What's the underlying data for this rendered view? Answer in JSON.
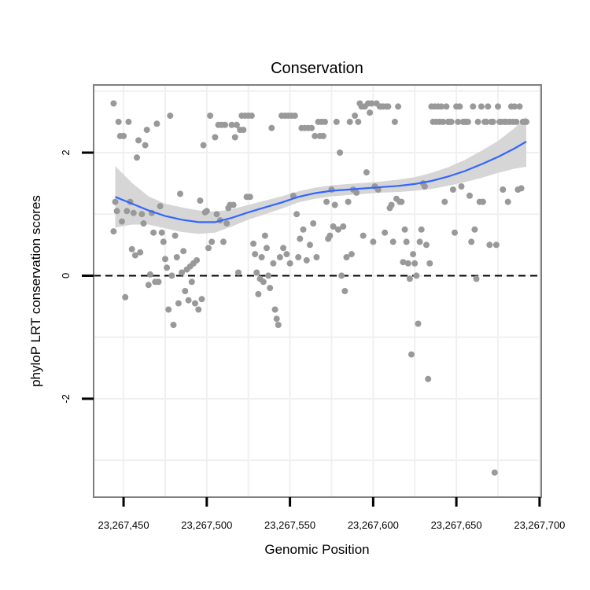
{
  "chart_data": {
    "type": "scatter",
    "title": "Conservation",
    "xlabel": "Genomic Position",
    "ylabel": "phyloP LRT conservation scores",
    "xlim": [
      23267432,
      23267701
    ],
    "ylim": [
      -3.6,
      3.1
    ],
    "x_ticks": [
      23267450,
      23267500,
      23267550,
      23267600,
      23267650,
      23267700
    ],
    "x_tick_labels": [
      "23,267,450",
      "23,267,500",
      "23,267,550",
      "23,267,600",
      "23,267,650",
      "23,267,700"
    ],
    "y_ticks": [
      -2,
      0,
      2
    ],
    "y_tick_labels": [
      "-2",
      "0",
      "2"
    ],
    "grid": true,
    "reference_line": {
      "y": 0,
      "style": "dashed"
    },
    "colors": {
      "points": "#999999",
      "smooth_line": "#3366ff",
      "ribbon": "#d6d6d6",
      "grid": "#f0f0f0",
      "panel_border": "#7f7f7f"
    },
    "points": [
      {
        "x": 23267444,
        "y": 2.8
      },
      {
        "x": 23267444,
        "y": 0.72
      },
      {
        "x": 23267445,
        "y": 1.2
      },
      {
        "x": 23267446,
        "y": 1.05
      },
      {
        "x": 23267447,
        "y": 2.5
      },
      {
        "x": 23267448,
        "y": 2.27
      },
      {
        "x": 23267449,
        "y": 0.88
      },
      {
        "x": 23267450,
        "y": 2.27
      },
      {
        "x": 23267451,
        "y": -0.35
      },
      {
        "x": 23267452,
        "y": 1.05
      },
      {
        "x": 23267453,
        "y": 2.5
      },
      {
        "x": 23267454,
        "y": 1.2
      },
      {
        "x": 23267455,
        "y": 0.43
      },
      {
        "x": 23267456,
        "y": 1.02
      },
      {
        "x": 23267457,
        "y": 0.33
      },
      {
        "x": 23267458,
        "y": 1.92
      },
      {
        "x": 23267459,
        "y": 2.2
      },
      {
        "x": 23267460,
        "y": 0.38
      },
      {
        "x": 23267461,
        "y": 1.0
      },
      {
        "x": 23267462,
        "y": 0.85
      },
      {
        "x": 23267463,
        "y": 2.12
      },
      {
        "x": 23267464,
        "y": 2.37
      },
      {
        "x": 23267465,
        "y": -0.15
      },
      {
        "x": 23267466,
        "y": 0.02
      },
      {
        "x": 23267467,
        "y": 1.02
      },
      {
        "x": 23267468,
        "y": 0.7
      },
      {
        "x": 23267469,
        "y": -0.1
      },
      {
        "x": 23267470,
        "y": 2.47
      },
      {
        "x": 23267471,
        "y": -0.1
      },
      {
        "x": 23267472,
        "y": 1.13
      },
      {
        "x": 23267473,
        "y": 0.7
      },
      {
        "x": 23267474,
        "y": 0.55
      },
      {
        "x": 23267475,
        "y": 0.27
      },
      {
        "x": 23267476,
        "y": 0.13
      },
      {
        "x": 23267477,
        "y": -0.55
      },
      {
        "x": 23267478,
        "y": 2.6
      },
      {
        "x": 23267479,
        "y": 0.0
      },
      {
        "x": 23267480,
        "y": -0.8
      },
      {
        "x": 23267481,
        "y": 0.65
      },
      {
        "x": 23267482,
        "y": 0.3
      },
      {
        "x": 23267483,
        "y": -0.45
      },
      {
        "x": 23267484,
        "y": 1.33
      },
      {
        "x": 23267485,
        "y": 0.05
      },
      {
        "x": 23267486,
        "y": 0.4
      },
      {
        "x": 23267487,
        "y": -0.25
      },
      {
        "x": 23267488,
        "y": 0.1
      },
      {
        "x": 23267489,
        "y": -0.4
      },
      {
        "x": 23267490,
        "y": 0.15
      },
      {
        "x": 23267491,
        "y": -0.1
      },
      {
        "x": 23267492,
        "y": 0.2
      },
      {
        "x": 23267493,
        "y": -0.45
      },
      {
        "x": 23267494,
        "y": 0.25
      },
      {
        "x": 23267495,
        "y": -0.55
      },
      {
        "x": 23267496,
        "y": 1.22
      },
      {
        "x": 23267497,
        "y": -0.38
      },
      {
        "x": 23267498,
        "y": 2.12
      },
      {
        "x": 23267499,
        "y": 1.03
      },
      {
        "x": 23267500,
        "y": 1.05
      },
      {
        "x": 23267501,
        "y": 0.45
      },
      {
        "x": 23267502,
        "y": 2.6
      },
      {
        "x": 23267503,
        "y": 0.55
      },
      {
        "x": 23267505,
        "y": 2.25
      },
      {
        "x": 23267506,
        "y": 1.0
      },
      {
        "x": 23267507,
        "y": 2.45
      },
      {
        "x": 23267508,
        "y": 0.9
      },
      {
        "x": 23267509,
        "y": 2.45
      },
      {
        "x": 23267510,
        "y": 0.55
      },
      {
        "x": 23267511,
        "y": 2.45
      },
      {
        "x": 23267512,
        "y": 0.85
      },
      {
        "x": 23267513,
        "y": 1.1
      },
      {
        "x": 23267514,
        "y": 1.15
      },
      {
        "x": 23267515,
        "y": 2.45
      },
      {
        "x": 23267516,
        "y": 1.15
      },
      {
        "x": 23267517,
        "y": 2.25
      },
      {
        "x": 23267518,
        "y": 2.45
      },
      {
        "x": 23267519,
        "y": 0.05
      },
      {
        "x": 23267520,
        "y": 2.37
      },
      {
        "x": 23267521,
        "y": 2.6
      },
      {
        "x": 23267522,
        "y": 2.37
      },
      {
        "x": 23267523,
        "y": 2.6
      },
      {
        "x": 23267524,
        "y": 1.28
      },
      {
        "x": 23267525,
        "y": 2.6
      },
      {
        "x": 23267526,
        "y": 1.28
      },
      {
        "x": 23267527,
        "y": 2.6
      },
      {
        "x": 23267528,
        "y": 0.52
      },
      {
        "x": 23267529,
        "y": 0.35
      },
      {
        "x": 23267530,
        "y": 0.05
      },
      {
        "x": 23267531,
        "y": -0.3
      },
      {
        "x": 23267532,
        "y": -0.05
      },
      {
        "x": 23267533,
        "y": 0.3
      },
      {
        "x": 23267534,
        "y": -0.1
      },
      {
        "x": 23267535,
        "y": 0.65
      },
      {
        "x": 23267536,
        "y": 0.45
      },
      {
        "x": 23267537,
        "y": 0.0
      },
      {
        "x": 23267538,
        "y": -0.2
      },
      {
        "x": 23267539,
        "y": 2.4
      },
      {
        "x": 23267540,
        "y": 0.2
      },
      {
        "x": 23267541,
        "y": -0.55
      },
      {
        "x": 23267542,
        "y": -0.7
      },
      {
        "x": 23267543,
        "y": -0.8
      },
      {
        "x": 23267544,
        "y": 0.3
      },
      {
        "x": 23267545,
        "y": 2.6
      },
      {
        "x": 23267546,
        "y": 0.45
      },
      {
        "x": 23267547,
        "y": 2.6
      },
      {
        "x": 23267548,
        "y": 0.35
      },
      {
        "x": 23267549,
        "y": 2.6
      },
      {
        "x": 23267550,
        "y": 0.2
      },
      {
        "x": 23267551,
        "y": 2.6
      },
      {
        "x": 23267552,
        "y": 1.3
      },
      {
        "x": 23267553,
        "y": 2.6
      },
      {
        "x": 23267554,
        "y": 1.0
      },
      {
        "x": 23267555,
        "y": 0.3
      },
      {
        "x": 23267556,
        "y": 0.6
      },
      {
        "x": 23267557,
        "y": 2.4
      },
      {
        "x": 23267558,
        "y": 0.75
      },
      {
        "x": 23267559,
        "y": 2.4
      },
      {
        "x": 23267560,
        "y": 0.25
      },
      {
        "x": 23267561,
        "y": 2.4
      },
      {
        "x": 23267562,
        "y": 0.5
      },
      {
        "x": 23267563,
        "y": 2.4
      },
      {
        "x": 23267564,
        "y": 0.85
      },
      {
        "x": 23267565,
        "y": 2.27
      },
      {
        "x": 23267566,
        "y": 0.3
      },
      {
        "x": 23267567,
        "y": 2.5
      },
      {
        "x": 23267568,
        "y": 2.27
      },
      {
        "x": 23267569,
        "y": 2.5
      },
      {
        "x": 23267570,
        "y": 2.27
      },
      {
        "x": 23267571,
        "y": 2.5
      },
      {
        "x": 23267572,
        "y": 1.2
      },
      {
        "x": 23267573,
        "y": 0.6
      },
      {
        "x": 23267574,
        "y": 0.65
      },
      {
        "x": 23267575,
        "y": 1.4
      },
      {
        "x": 23267576,
        "y": 0.8
      },
      {
        "x": 23267577,
        "y": 1.15
      },
      {
        "x": 23267578,
        "y": 2.5
      },
      {
        "x": 23267579,
        "y": 0.75
      },
      {
        "x": 23267580,
        "y": 2.0
      },
      {
        "x": 23267581,
        "y": 0.0
      },
      {
        "x": 23267582,
        "y": 0.8
      },
      {
        "x": 23267583,
        "y": -0.25
      },
      {
        "x": 23267584,
        "y": 0.3
      },
      {
        "x": 23267585,
        "y": 1.2
      },
      {
        "x": 23267586,
        "y": 2.5
      },
      {
        "x": 23267587,
        "y": 0.35
      },
      {
        "x": 23267588,
        "y": 1.4
      },
      {
        "x": 23267589,
        "y": 2.6
      },
      {
        "x": 23267590,
        "y": 1.35
      },
      {
        "x": 23267591,
        "y": 2.5
      },
      {
        "x": 23267592,
        "y": 2.8
      },
      {
        "x": 23267593,
        "y": 2.75
      },
      {
        "x": 23267594,
        "y": 0.65
      },
      {
        "x": 23267595,
        "y": 2.75
      },
      {
        "x": 23267596,
        "y": 1.68
      },
      {
        "x": 23267597,
        "y": 2.8
      },
      {
        "x": 23267598,
        "y": 2.65
      },
      {
        "x": 23267599,
        "y": 2.8
      },
      {
        "x": 23267600,
        "y": 0.55
      },
      {
        "x": 23267601,
        "y": 1.45
      },
      {
        "x": 23267602,
        "y": 2.8
      },
      {
        "x": 23267603,
        "y": 1.4
      },
      {
        "x": 23267604,
        "y": 2.75
      },
      {
        "x": 23267605,
        "y": 2.75
      },
      {
        "x": 23267606,
        "y": 2.75
      },
      {
        "x": 23267607,
        "y": 0.7
      },
      {
        "x": 23267608,
        "y": 2.75
      },
      {
        "x": 23267609,
        "y": 2.75
      },
      {
        "x": 23267610,
        "y": 1.1
      },
      {
        "x": 23267611,
        "y": 1.15
      },
      {
        "x": 23267612,
        "y": 0.55
      },
      {
        "x": 23267613,
        "y": 2.5
      },
      {
        "x": 23267614,
        "y": 1.25
      },
      {
        "x": 23267615,
        "y": 2.75
      },
      {
        "x": 23267616,
        "y": 1.2
      },
      {
        "x": 23267617,
        "y": 1.2
      },
      {
        "x": 23267618,
        "y": 0.22
      },
      {
        "x": 23267619,
        "y": 0.75
      },
      {
        "x": 23267620,
        "y": 0.55
      },
      {
        "x": 23267621,
        "y": 0.2
      },
      {
        "x": 23267622,
        "y": -0.05
      },
      {
        "x": 23267623,
        "y": -1.28
      },
      {
        "x": 23267624,
        "y": 0.35
      },
      {
        "x": 23267625,
        "y": 0.2
      },
      {
        "x": 23267626,
        "y": 0.0
      },
      {
        "x": 23267627,
        "y": -0.78
      },
      {
        "x": 23267628,
        "y": 0.55
      },
      {
        "x": 23267629,
        "y": 0.75
      },
      {
        "x": 23267630,
        "y": 1.5
      },
      {
        "x": 23267631,
        "y": 1.45
      },
      {
        "x": 23267632,
        "y": 0.5
      },
      {
        "x": 23267633,
        "y": -1.68
      },
      {
        "x": 23267634,
        "y": 0.2
      },
      {
        "x": 23267635,
        "y": 2.75
      },
      {
        "x": 23267636,
        "y": 2.5
      },
      {
        "x": 23267637,
        "y": 2.75
      },
      {
        "x": 23267638,
        "y": 2.5
      },
      {
        "x": 23267639,
        "y": 2.75
      },
      {
        "x": 23267640,
        "y": 2.5
      },
      {
        "x": 23267641,
        "y": 2.75
      },
      {
        "x": 23267642,
        "y": 2.5
      },
      {
        "x": 23267643,
        "y": 1.2
      },
      {
        "x": 23267644,
        "y": 2.75
      },
      {
        "x": 23267645,
        "y": 2.5
      },
      {
        "x": 23267646,
        "y": 2.5
      },
      {
        "x": 23267647,
        "y": 2.5
      },
      {
        "x": 23267648,
        "y": 1.4
      },
      {
        "x": 23267649,
        "y": 0.7
      },
      {
        "x": 23267650,
        "y": 2.75
      },
      {
        "x": 23267651,
        "y": 2.5
      },
      {
        "x": 23267652,
        "y": 2.75
      },
      {
        "x": 23267653,
        "y": 1.45
      },
      {
        "x": 23267654,
        "y": 2.5
      },
      {
        "x": 23267655,
        "y": 2.5
      },
      {
        "x": 23267656,
        "y": 2.5
      },
      {
        "x": 23267657,
        "y": 2.5
      },
      {
        "x": 23267658,
        "y": 1.3
      },
      {
        "x": 23267659,
        "y": 0.55
      },
      {
        "x": 23267660,
        "y": 2.75
      },
      {
        "x": 23267661,
        "y": 0.75
      },
      {
        "x": 23267662,
        "y": -0.05
      },
      {
        "x": 23267663,
        "y": 2.5
      },
      {
        "x": 23267664,
        "y": 1.2
      },
      {
        "x": 23267665,
        "y": 2.75
      },
      {
        "x": 23267666,
        "y": 1.2
      },
      {
        "x": 23267667,
        "y": 2.5
      },
      {
        "x": 23267668,
        "y": 2.5
      },
      {
        "x": 23267669,
        "y": 2.75
      },
      {
        "x": 23267670,
        "y": 0.5
      },
      {
        "x": 23267671,
        "y": 2.5
      },
      {
        "x": 23267672,
        "y": 2.5
      },
      {
        "x": 23267673,
        "y": -3.2
      },
      {
        "x": 23267674,
        "y": 0.5
      },
      {
        "x": 23267675,
        "y": 2.75
      },
      {
        "x": 23267676,
        "y": 2.5
      },
      {
        "x": 23267677,
        "y": 2.5
      },
      {
        "x": 23267678,
        "y": 1.4
      },
      {
        "x": 23267679,
        "y": 2.5
      },
      {
        "x": 23267680,
        "y": 2.5
      },
      {
        "x": 23267681,
        "y": 1.2
      },
      {
        "x": 23267682,
        "y": 2.5
      },
      {
        "x": 23267683,
        "y": 2.75
      },
      {
        "x": 23267684,
        "y": 2.5
      },
      {
        "x": 23267685,
        "y": 2.75
      },
      {
        "x": 23267686,
        "y": 2.5
      },
      {
        "x": 23267687,
        "y": 1.4
      },
      {
        "x": 23267688,
        "y": 2.75
      },
      {
        "x": 23267689,
        "y": 1.42
      },
      {
        "x": 23267690,
        "y": 2.5
      },
      {
        "x": 23267691,
        "y": 2.5
      },
      {
        "x": 23267692,
        "y": 2.5
      }
    ],
    "smooth_fit": {
      "x": [
        23267445,
        23267455,
        23267465,
        23267475,
        23267485,
        23267495,
        23267505,
        23267515,
        23267525,
        23267535,
        23267545,
        23267555,
        23267565,
        23267575,
        23267585,
        23267595,
        23267605,
        23267615,
        23267625,
        23267635,
        23267645,
        23267655,
        23267665,
        23267675,
        23267685,
        23267692
      ],
      "y": [
        1.28,
        1.17,
        1.06,
        0.97,
        0.91,
        0.87,
        0.87,
        0.94,
        1.03,
        1.11,
        1.19,
        1.28,
        1.34,
        1.38,
        1.4,
        1.42,
        1.44,
        1.46,
        1.49,
        1.54,
        1.61,
        1.7,
        1.81,
        1.93,
        2.07,
        2.18
      ],
      "lower": [
        0.78,
        0.83,
        0.83,
        0.77,
        0.71,
        0.68,
        0.7,
        0.8,
        0.91,
        1.0,
        1.09,
        1.19,
        1.25,
        1.29,
        1.31,
        1.33,
        1.35,
        1.36,
        1.38,
        1.41,
        1.46,
        1.52,
        1.59,
        1.67,
        1.74,
        1.77
      ],
      "upper": [
        1.78,
        1.51,
        1.29,
        1.17,
        1.11,
        1.06,
        1.04,
        1.08,
        1.15,
        1.22,
        1.29,
        1.37,
        1.43,
        1.47,
        1.49,
        1.51,
        1.53,
        1.56,
        1.6,
        1.67,
        1.76,
        1.88,
        2.03,
        2.19,
        2.4,
        2.59
      ]
    }
  }
}
